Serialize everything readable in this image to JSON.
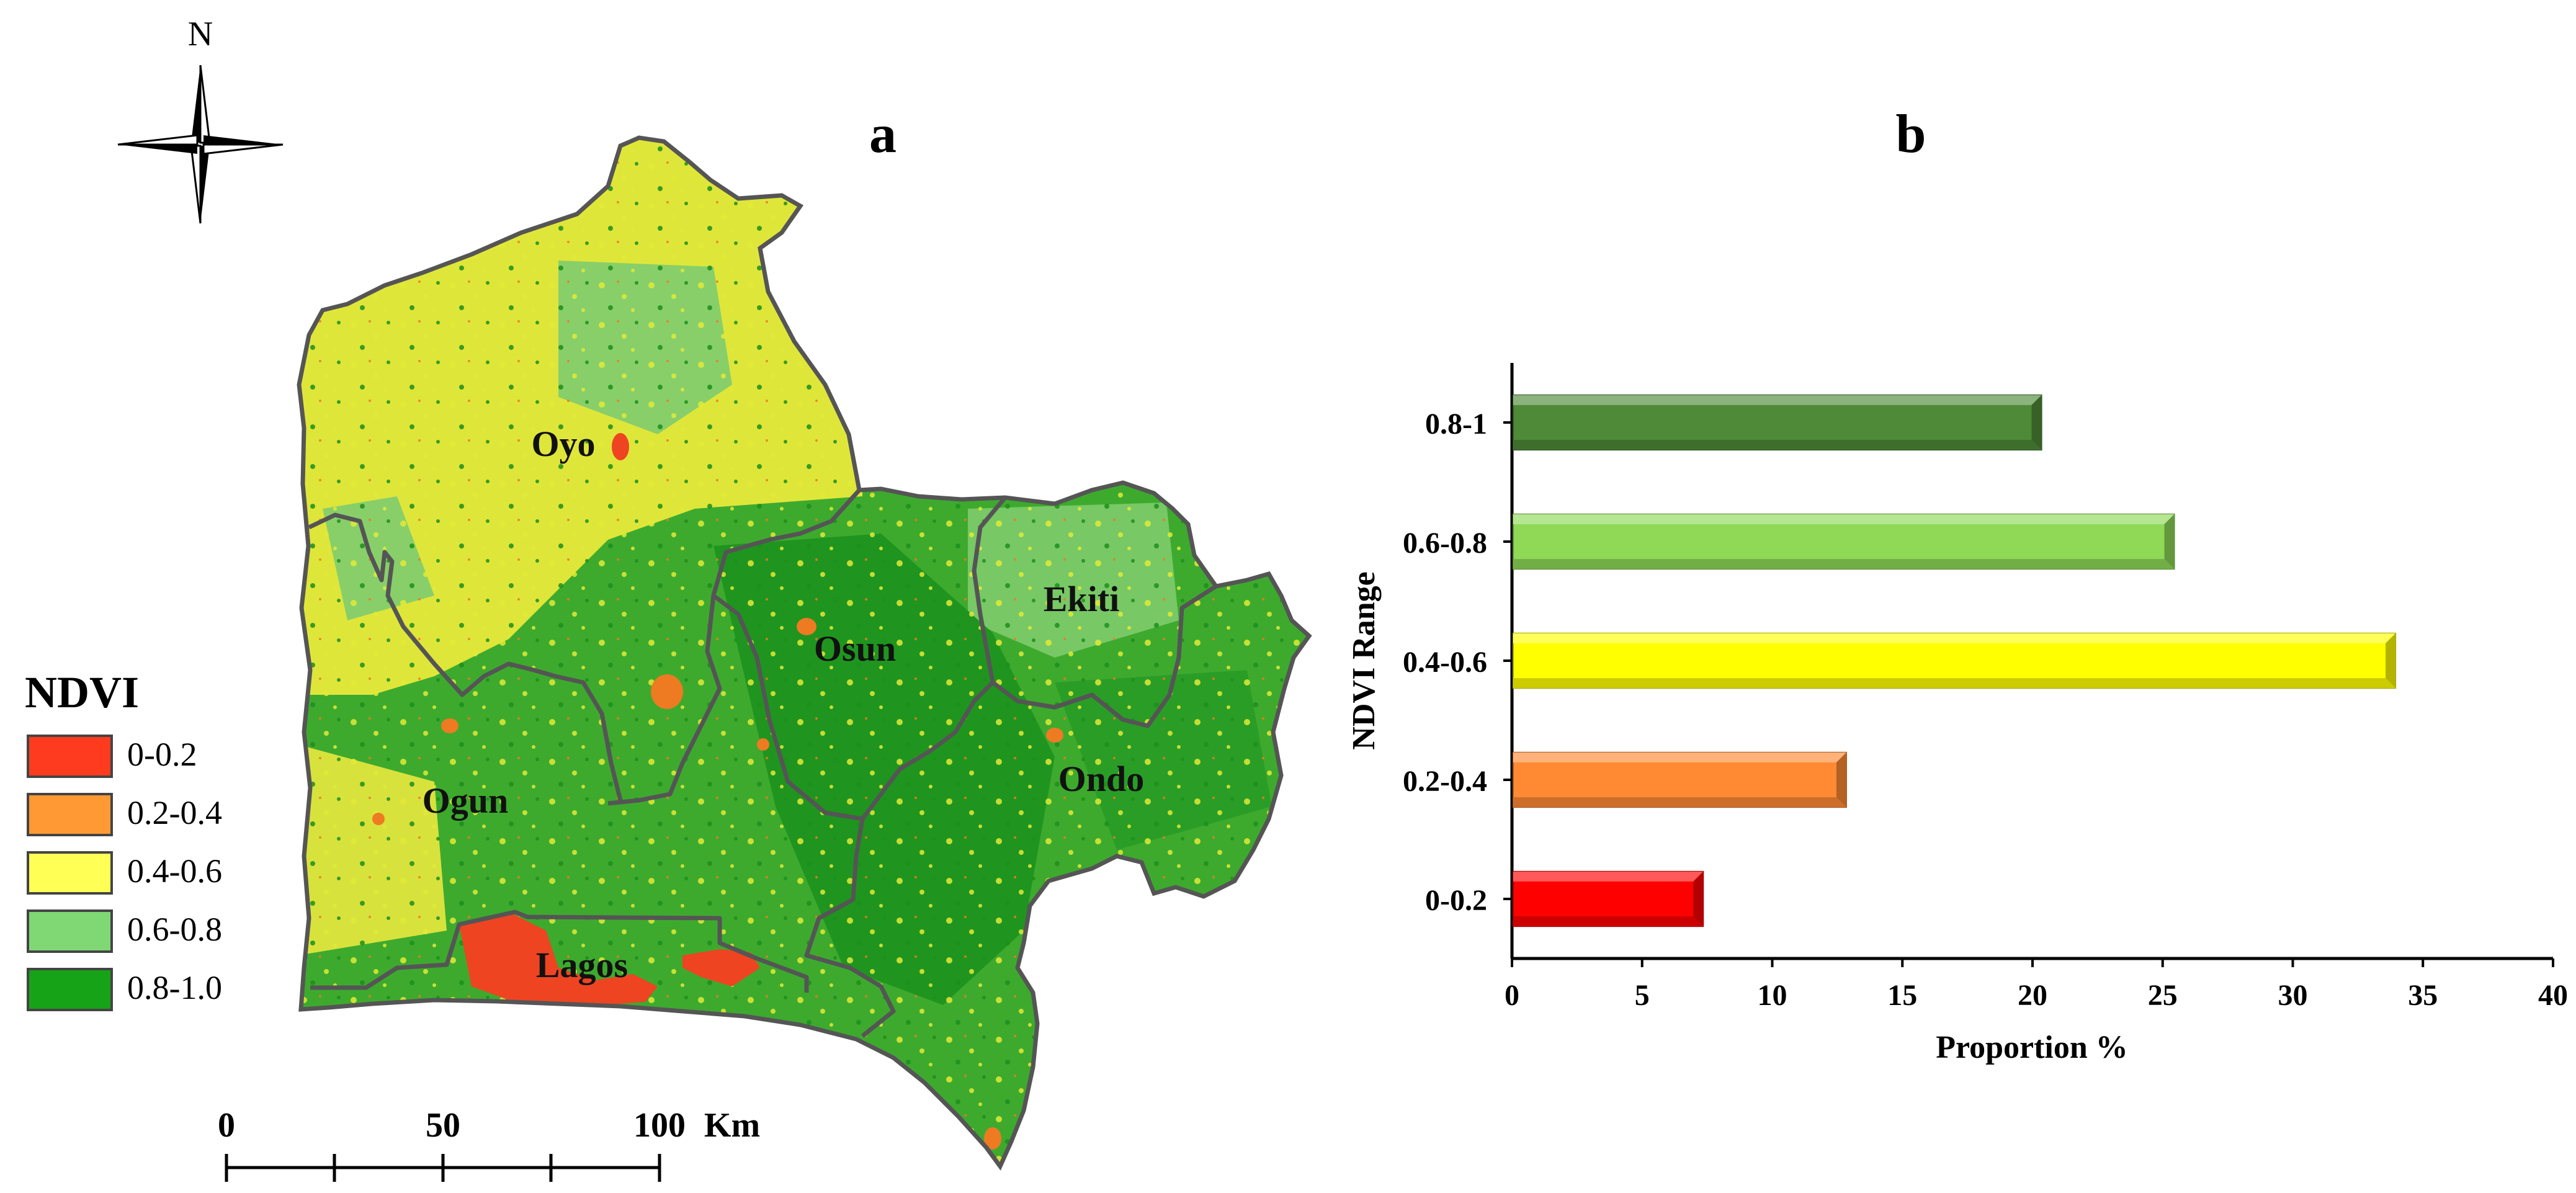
{
  "panels": {
    "map_label": "a",
    "chart_label": "b"
  },
  "map": {
    "north_label": "N",
    "legend": {
      "title": "NDVI",
      "items": [
        {
          "label": "0-0.2",
          "color": "#ff3b1f"
        },
        {
          "label": "0.2-0.4",
          "color": "#ff9933"
        },
        {
          "label": "0.4-0.6",
          "color": "#ffff55"
        },
        {
          "label": "0.6-0.8",
          "color": "#7fd873"
        },
        {
          "label": "0.8-1.0",
          "color": "#17a317"
        }
      ]
    },
    "regions": [
      "Oyo",
      "Osun",
      "Ekiti",
      "Ogun",
      "Ondo",
      "Lagos"
    ],
    "scale_bar": {
      "ticks": [
        "0",
        "50",
        "100"
      ],
      "unit": "Km"
    },
    "colors": {
      "border": "#555555",
      "base_green": "#3daa2e",
      "yellow": "#e6ec3a",
      "light_green": "#80cf6a",
      "dark_green": "#1c8f1c",
      "red": "#ee4422"
    }
  },
  "chart_data": {
    "type": "bar",
    "orientation": "horizontal",
    "categories": [
      "0-0.2",
      "0.2-0.4",
      "0.4-0.6",
      "0.6-0.8",
      "0.8-1"
    ],
    "values": [
      7.3,
      12.8,
      33.9,
      25.4,
      20.3
    ],
    "colors": [
      "#ff0000",
      "#ff8a33",
      "#ffff00",
      "#8fd957",
      "#4e8a37"
    ],
    "xlabel": "Proportion %",
    "ylabel": "NDVI Range",
    "xlim": [
      0,
      40
    ],
    "xticks": [
      "0",
      "5",
      "10",
      "15",
      "20",
      "25",
      "30",
      "35",
      "40"
    ],
    "grid": false,
    "legend": "none"
  }
}
